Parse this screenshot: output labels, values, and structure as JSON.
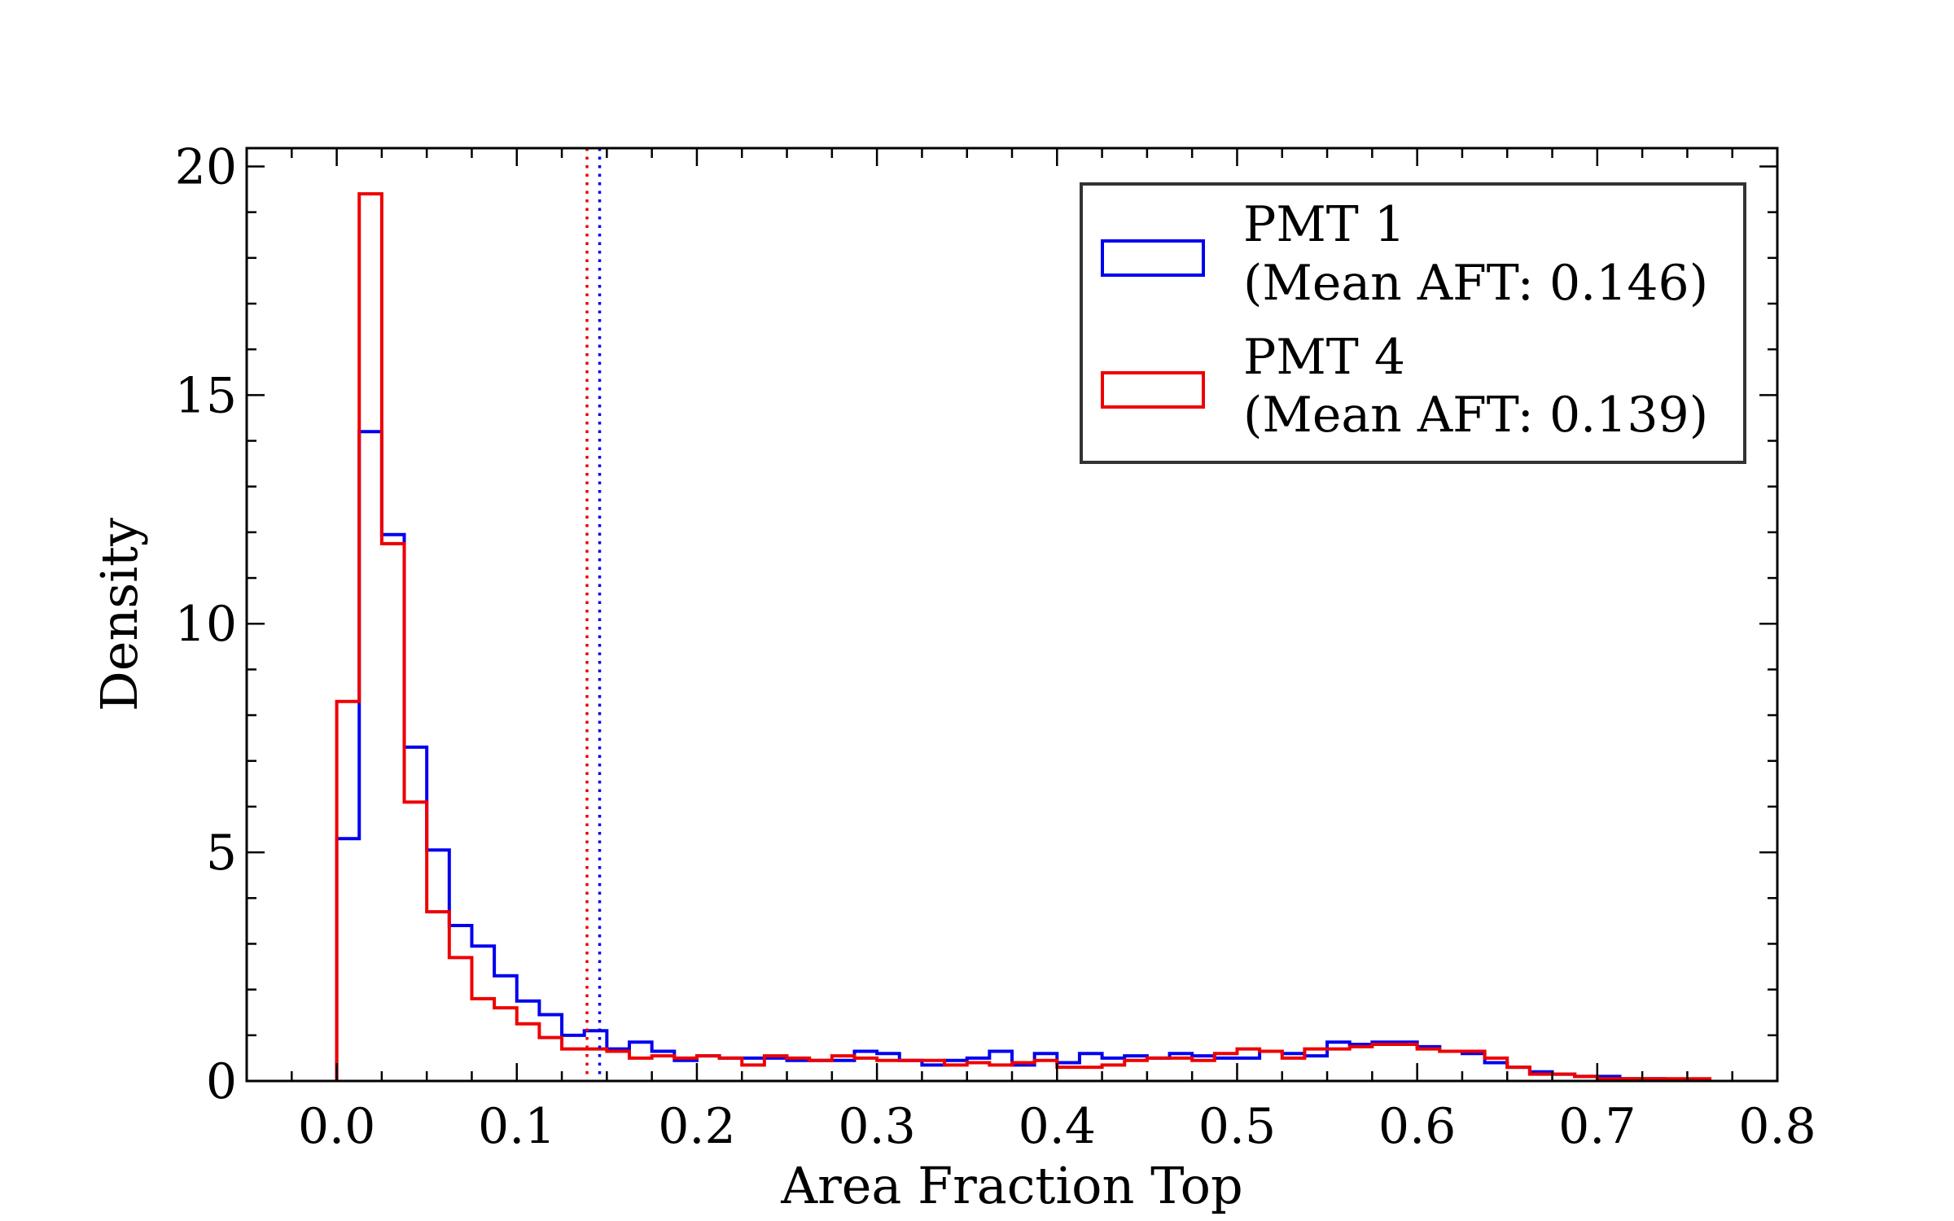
{
  "chart_data": {
    "type": "histogram",
    "xlabel": "Area Fraction Top",
    "ylabel": "Density",
    "xlim": [
      -0.05,
      0.8
    ],
    "ylim": [
      0,
      20.4
    ],
    "x_ticks": [
      0.0,
      0.1,
      0.2,
      0.3,
      0.4,
      0.5,
      0.6,
      0.7,
      0.8
    ],
    "x_tick_labels": [
      "0.0",
      "0.1",
      "0.2",
      "0.3",
      "0.4",
      "0.5",
      "0.6",
      "0.7",
      "0.8"
    ],
    "y_ticks": [
      0,
      5,
      10,
      15,
      20
    ],
    "y_tick_labels": [
      "0",
      "5",
      "10",
      "15",
      "20"
    ],
    "bin_width": 0.0125,
    "bin_start": 0.0,
    "legend_position": "top-right",
    "legend": [
      {
        "label_line1": "PMT 1",
        "label_line2": "(Mean AFT: 0.146)",
        "color": "#0000ee"
      },
      {
        "label_line1": "PMT 4",
        "label_line2": "(Mean AFT: 0.139)",
        "color": "#ee0000"
      }
    ],
    "series": [
      {
        "name": "PMT 1",
        "color": "#0000ee",
        "mean": 0.146,
        "values": [
          5.3,
          14.2,
          11.95,
          7.3,
          5.05,
          3.4,
          2.95,
          2.3,
          1.75,
          1.45,
          1.0,
          1.1,
          0.7,
          0.85,
          0.65,
          0.45,
          0.55,
          0.5,
          0.5,
          0.5,
          0.45,
          0.45,
          0.45,
          0.65,
          0.6,
          0.45,
          0.35,
          0.45,
          0.5,
          0.65,
          0.35,
          0.6,
          0.4,
          0.6,
          0.5,
          0.55,
          0.5,
          0.6,
          0.55,
          0.5,
          0.5,
          0.65,
          0.6,
          0.55,
          0.85,
          0.8,
          0.85,
          0.85,
          0.75,
          0.65,
          0.6,
          0.4,
          0.3,
          0.2,
          0.15,
          0.1,
          0.1,
          0.05,
          0.05,
          0.02,
          0.01
        ]
      },
      {
        "name": "PMT 4",
        "color": "#ee0000",
        "mean": 0.139,
        "values": [
          8.3,
          19.4,
          11.75,
          6.1,
          3.7,
          2.7,
          1.8,
          1.6,
          1.25,
          0.95,
          0.7,
          0.7,
          0.65,
          0.5,
          0.55,
          0.5,
          0.55,
          0.5,
          0.35,
          0.55,
          0.5,
          0.45,
          0.55,
          0.5,
          0.45,
          0.45,
          0.45,
          0.35,
          0.4,
          0.35,
          0.4,
          0.45,
          0.3,
          0.3,
          0.35,
          0.45,
          0.5,
          0.5,
          0.45,
          0.6,
          0.7,
          0.65,
          0.5,
          0.7,
          0.7,
          0.75,
          0.8,
          0.8,
          0.7,
          0.65,
          0.65,
          0.5,
          0.3,
          0.15,
          0.15,
          0.1,
          0.05,
          0.05,
          0.05,
          0.05,
          0.05
        ]
      }
    ]
  }
}
